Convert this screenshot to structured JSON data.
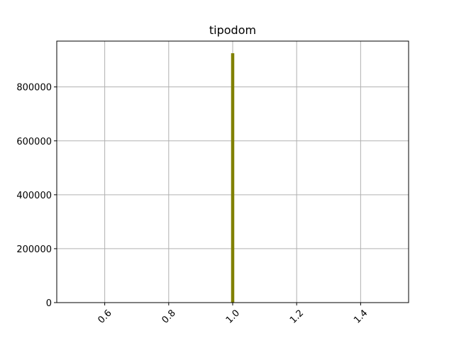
{
  "chart_data": {
    "type": "bar",
    "title": "tipodom",
    "xlabel": "",
    "ylabel": "",
    "xlim": [
      0.45,
      1.55
    ],
    "ylim": [
      0,
      970000
    ],
    "grid": true,
    "bar_color": "#808000",
    "bars": [
      {
        "x_start": 0.995,
        "x_end": 1.005,
        "value": 925000
      }
    ],
    "x_ticks": [
      {
        "value": 0.6,
        "label": "0.6"
      },
      {
        "value": 0.8,
        "label": "0.8"
      },
      {
        "value": 1.0,
        "label": "1.0"
      },
      {
        "value": 1.2,
        "label": "1.2"
      },
      {
        "value": 1.4,
        "label": "1.4"
      }
    ],
    "y_ticks": [
      {
        "value": 0,
        "label": "0"
      },
      {
        "value": 200000,
        "label": "200000"
      },
      {
        "value": 400000,
        "label": "400000"
      },
      {
        "value": 600000,
        "label": "600000"
      },
      {
        "value": 800000,
        "label": "800000"
      }
    ],
    "x_tick_rotation_deg": 45
  }
}
